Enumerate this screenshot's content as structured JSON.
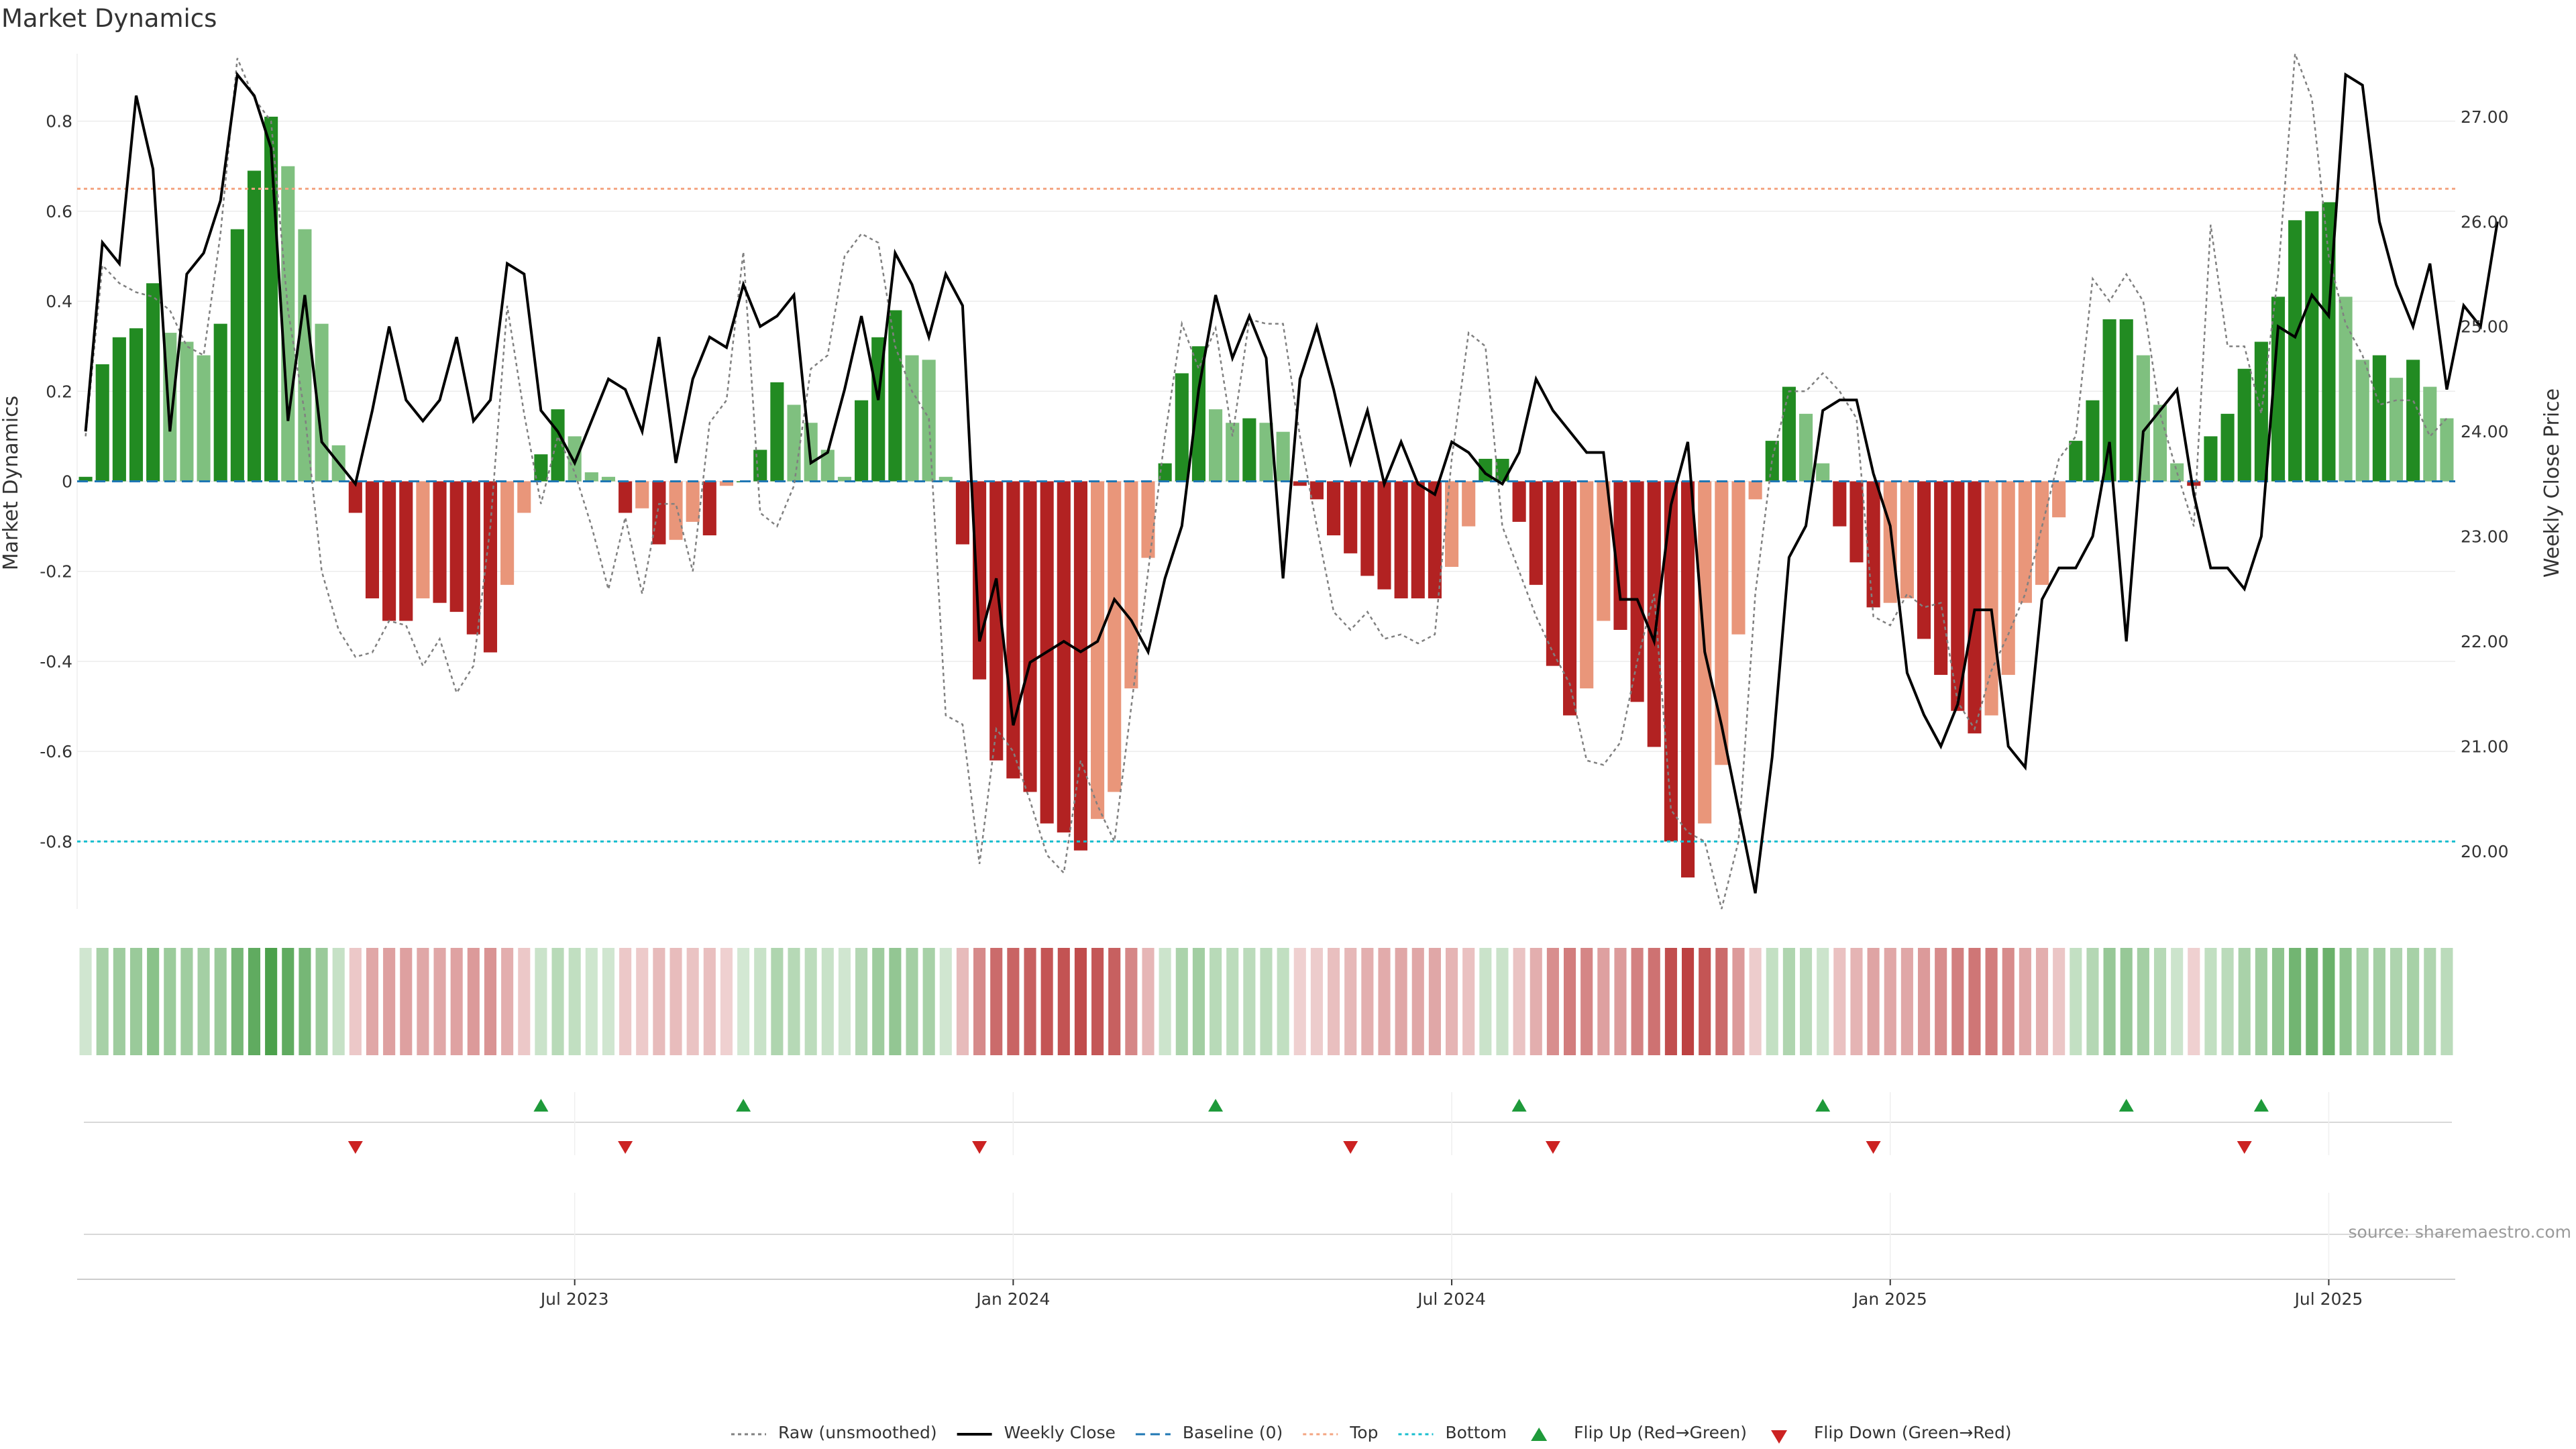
{
  "chart_data": {
    "type": "bar",
    "title": "Market Dynamics",
    "ylabel_left": "Market Dynamics",
    "ylabel_right": "Weekly Close Price",
    "ylim_left": [
      -0.95,
      0.95
    ],
    "ylim_right": [
      19.45,
      27.6
    ],
    "yticks_left": [
      "0.8",
      "0.6",
      "0.4",
      "0.2",
      "0",
      "-0.2",
      "-0.4",
      "-0.6",
      "-0.8"
    ],
    "yticks_right": [
      "27.00",
      "26.00",
      "25.00",
      "24.00",
      "23.00",
      "22.00",
      "21.00",
      "20.00"
    ],
    "xticks": [
      "Jul 2023",
      "Jan 2024",
      "Jul 2024",
      "Jan 2025",
      "Jul 2025"
    ],
    "xtick_weeks": [
      29,
      55,
      81,
      107,
      133
    ],
    "reference_lines": {
      "baseline": 0,
      "top": 0.65,
      "bottom": -0.8
    },
    "colors": {
      "strong_up": "#228b22",
      "weak_up": "#7fc07f",
      "strong_down": "#b22222",
      "weak_down": "#e9967a",
      "weekly_close": "#000000",
      "raw": "#808080",
      "baseline": "#1f77b4",
      "top": "#f4a582",
      "bottom": "#17becf",
      "flip_up": "#1e9a3a",
      "flip_down": "#cc2222"
    },
    "momentum": [
      0.01,
      0.26,
      0.32,
      0.34,
      0.44,
      0.33,
      0.31,
      0.28,
      0.35,
      0.56,
      0.69,
      0.81,
      0.7,
      0.56,
      0.35,
      0.08,
      -0.07,
      -0.26,
      -0.31,
      -0.31,
      -0.26,
      -0.27,
      -0.29,
      -0.34,
      -0.38,
      -0.23,
      -0.07,
      0.06,
      0.16,
      0.1,
      0.02,
      0.01,
      -0.07,
      -0.06,
      -0.14,
      -0.13,
      -0.09,
      -0.12,
      -0.01,
      0.0,
      0.07,
      0.22,
      0.17,
      0.13,
      0.07,
      0.01,
      0.18,
      0.32,
      0.38,
      0.28,
      0.27,
      0.01,
      -0.14,
      -0.44,
      -0.62,
      -0.66,
      -0.69,
      -0.76,
      -0.78,
      -0.82,
      -0.75,
      -0.69,
      -0.46,
      -0.17,
      0.04,
      0.24,
      0.3,
      0.16,
      0.13,
      0.14,
      0.13,
      0.11,
      -0.01,
      -0.04,
      -0.12,
      -0.16,
      -0.21,
      -0.24,
      -0.26,
      -0.26,
      -0.26,
      -0.19,
      -0.1,
      0.05,
      0.05,
      -0.09,
      -0.23,
      -0.41,
      -0.52,
      -0.46,
      -0.31,
      -0.33,
      -0.49,
      -0.59,
      -0.8,
      -0.88,
      -0.76,
      -0.63,
      -0.34,
      -0.04,
      0.09,
      0.21,
      0.15,
      0.04,
      -0.1,
      -0.18,
      -0.28,
      -0.27,
      -0.26,
      -0.35,
      -0.43,
      -0.51,
      -0.56,
      -0.52,
      -0.43,
      -0.27,
      -0.23,
      -0.08,
      0.09,
      0.18,
      0.36,
      0.36,
      0.28,
      0.17,
      0.04,
      -0.01,
      0.1,
      0.15,
      0.25,
      0.31,
      0.41,
      0.58,
      0.6,
      0.62,
      0.41,
      0.27,
      0.28,
      0.23,
      0.27,
      0.21,
      0.14
    ],
    "weekly_close": [
      24.0,
      25.8,
      25.6,
      27.2,
      26.5,
      24.0,
      25.5,
      25.7,
      26.2,
      27.4,
      27.2,
      26.7,
      24.1,
      25.3,
      23.9,
      23.7,
      23.5,
      24.2,
      25.0,
      24.3,
      24.1,
      24.3,
      24.9,
      24.1,
      24.3,
      25.6,
      25.5,
      24.2,
      24.0,
      23.7,
      24.1,
      24.5,
      24.4,
      24.0,
      24.9,
      23.7,
      24.5,
      24.9,
      24.8,
      25.4,
      25.0,
      25.1,
      25.3,
      23.7,
      23.8,
      24.4,
      25.1,
      24.3,
      25.7,
      25.4,
      24.9,
      25.5,
      25.2,
      22.0,
      22.6,
      21.2,
      21.8,
      21.9,
      22.0,
      21.9,
      22.0,
      22.4,
      22.2,
      21.9,
      22.6,
      23.1,
      24.4,
      25.3,
      24.7,
      25.1,
      24.7,
      22.6,
      24.5,
      25.0,
      24.4,
      23.7,
      24.2,
      23.5,
      23.9,
      23.5,
      23.4,
      23.9,
      23.8,
      23.6,
      23.5,
      23.8,
      24.5,
      24.2,
      24.0,
      23.8,
      23.8,
      22.4,
      22.4,
      22.0,
      23.3,
      23.9,
      21.9,
      21.2,
      20.4,
      19.6,
      20.9,
      22.8,
      23.1,
      24.2,
      24.3,
      24.3,
      23.6,
      23.1,
      21.7,
      21.3,
      21.0,
      21.4,
      22.3,
      22.3,
      21.0,
      20.8,
      22.4,
      22.7,
      22.7,
      23.0,
      23.9,
      22.0,
      24.0,
      24.2,
      24.4,
      23.4,
      22.7,
      22.7,
      22.5,
      23.0,
      25.0,
      24.9,
      25.3,
      25.1,
      27.4,
      27.3,
      26.0,
      25.4,
      25.0,
      25.6,
      24.4,
      25.2,
      25.0,
      26.0
    ],
    "raw": [
      0.1,
      0.48,
      0.44,
      0.42,
      0.41,
      0.38,
      0.3,
      0.28,
      0.55,
      0.94,
      0.85,
      0.8,
      0.38,
      0.15,
      -0.2,
      -0.33,
      -0.39,
      -0.38,
      -0.31,
      -0.32,
      -0.41,
      -0.35,
      -0.47,
      -0.41,
      -0.1,
      0.39,
      0.15,
      -0.05,
      0.1,
      0.02,
      -0.1,
      -0.24,
      -0.08,
      -0.25,
      -0.05,
      -0.05,
      -0.2,
      0.13,
      0.18,
      0.51,
      -0.07,
      -0.1,
      -0.01,
      0.25,
      0.28,
      0.5,
      0.55,
      0.53,
      0.3,
      0.2,
      0.14,
      -0.52,
      -0.54,
      -0.85,
      -0.55,
      -0.6,
      -0.71,
      -0.83,
      -0.87,
      -0.62,
      -0.72,
      -0.8,
      -0.5,
      -0.2,
      0.1,
      0.35,
      0.25,
      0.34,
      0.1,
      0.36,
      0.35,
      0.35,
      0.1,
      -0.1,
      -0.29,
      -0.33,
      -0.29,
      -0.35,
      -0.34,
      -0.36,
      -0.34,
      0.05,
      0.33,
      0.3,
      -0.1,
      -0.2,
      -0.3,
      -0.38,
      -0.45,
      -0.62,
      -0.63,
      -0.58,
      -0.4,
      -0.25,
      -0.73,
      -0.78,
      -0.8,
      -0.95,
      -0.8,
      -0.25,
      0.05,
      0.2,
      0.2,
      0.24,
      0.2,
      0.14,
      -0.3,
      -0.32,
      -0.25,
      -0.28,
      -0.27,
      -0.49,
      -0.55,
      -0.42,
      -0.34,
      -0.25,
      -0.1,
      0.05,
      0.1,
      0.45,
      0.4,
      0.46,
      0.4,
      0.15,
      0.02,
      -0.1,
      0.57,
      0.3,
      0.3,
      0.15,
      0.46,
      0.95,
      0.85,
      0.5,
      0.35,
      0.28,
      0.17,
      0.18,
      0.18,
      0.1,
      0.14
    ]
  },
  "heat_strip": {
    "label": "momentum heat strip"
  },
  "flip_markers": {
    "up_weeks": [
      27,
      39,
      67,
      85,
      103,
      121,
      129
    ],
    "down_weeks": [
      16,
      32,
      53,
      75,
      87,
      106,
      128
    ]
  },
  "legend": [
    {
      "name": "raw-legend",
      "label": "Raw (unsmoothed)",
      "style": "dotted",
      "color": "#808080"
    },
    {
      "name": "weekly-close-legend",
      "label": "Weekly Close",
      "style": "solid",
      "color": "#000000"
    },
    {
      "name": "baseline-legend",
      "label": "Baseline (0)",
      "style": "dashed",
      "color": "#1f77b4"
    },
    {
      "name": "top-legend",
      "label": "Top",
      "style": "dotted",
      "color": "#f4a582"
    },
    {
      "name": "bottom-legend",
      "label": "Bottom",
      "style": "dotted",
      "color": "#17becf"
    },
    {
      "name": "flip-up-legend",
      "label": "Flip Up (Red→Green)",
      "style": "tri-up",
      "color": "#1e9a3a"
    },
    {
      "name": "flip-down-legend",
      "label": "Flip Down (Green→Red)",
      "style": "tri-down",
      "color": "#cc2222"
    }
  ],
  "source": "source: sharemaestro.com"
}
